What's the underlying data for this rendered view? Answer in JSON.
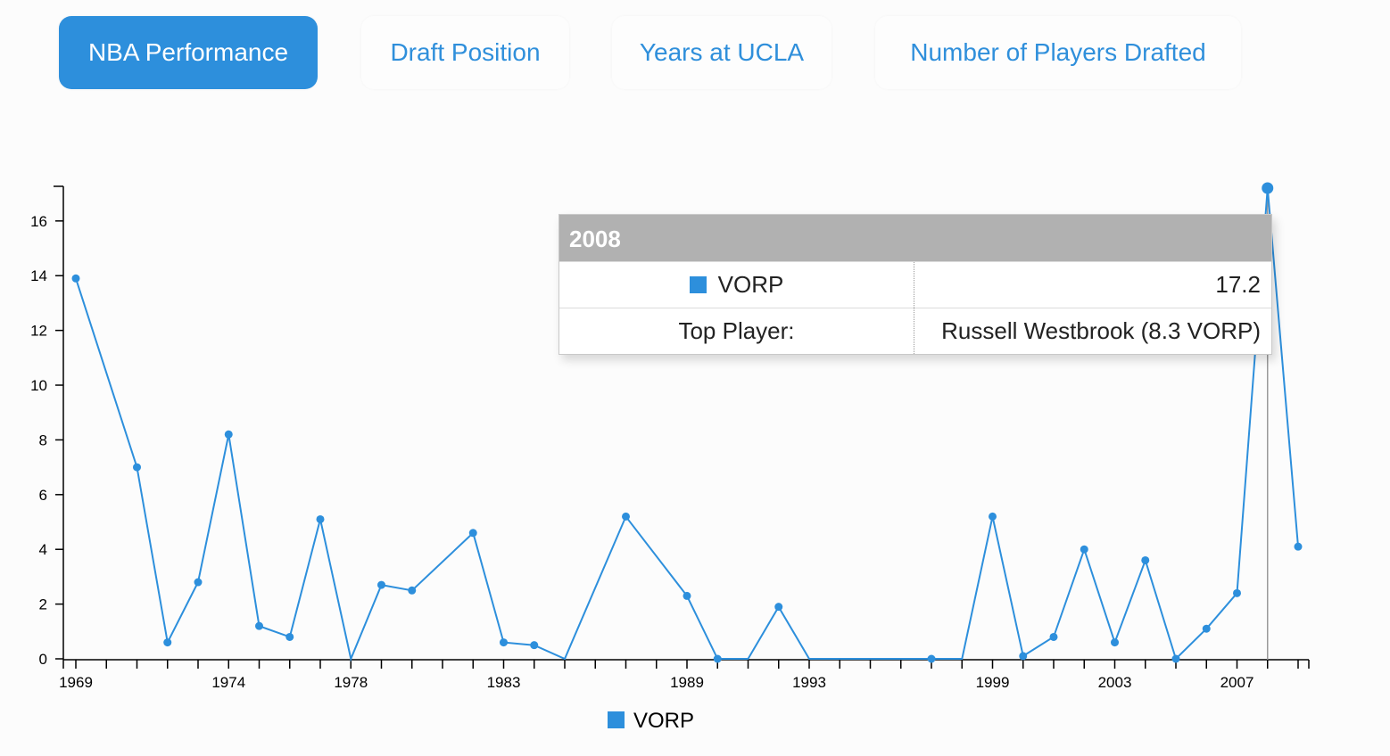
{
  "tabs": [
    {
      "label": "NBA Performance",
      "active": true
    },
    {
      "label": "Draft Position",
      "active": false
    },
    {
      "label": "Years at UCLA",
      "active": false
    },
    {
      "label": "Number of Players Drafted",
      "active": false
    }
  ],
  "colors": {
    "accent": "#2d8fdc",
    "tooltip_header": "#b1b1b1"
  },
  "chart_data": {
    "type": "line",
    "title": "",
    "xlabel": "",
    "ylabel": "",
    "xlim": [
      1969,
      2009
    ],
    "ylim": [
      0,
      17.2
    ],
    "y_ticks": [
      0,
      2,
      4,
      6,
      8,
      10,
      12,
      14,
      16
    ],
    "x_ticks": [
      1969,
      1970,
      1971,
      1972,
      1973,
      1974,
      1975,
      1976,
      1977,
      1978,
      1979,
      1980,
      1981,
      1982,
      1983,
      1984,
      1985,
      1986,
      1987,
      1988,
      1989,
      1990,
      1991,
      1992,
      1993,
      1994,
      1995,
      1996,
      1997,
      1998,
      1999,
      2000,
      2001,
      2002,
      2003,
      2004,
      2005,
      2006,
      2007,
      2008,
      2009
    ],
    "x_tick_labels": [
      {
        "year": 1969,
        "label": "1969"
      },
      {
        "year": 1974,
        "label": "1974"
      },
      {
        "year": 1978,
        "label": "1978"
      },
      {
        "year": 1983,
        "label": "1983"
      },
      {
        "year": 1989,
        "label": "1989"
      },
      {
        "year": 1993,
        "label": "1993"
      },
      {
        "year": 1999,
        "label": "1999"
      },
      {
        "year": 2003,
        "label": "2003"
      },
      {
        "year": 2007,
        "label": "2007"
      }
    ],
    "series": [
      {
        "name": "VORP",
        "color": "#2d8fdc",
        "points": [
          {
            "x": 1969,
            "y": 13.9
          },
          {
            "x": 1971,
            "y": 7.0
          },
          {
            "x": 1972,
            "y": 0.6
          },
          {
            "x": 1973,
            "y": 2.8
          },
          {
            "x": 1974,
            "y": 8.2
          },
          {
            "x": 1975,
            "y": 1.2
          },
          {
            "x": 1976,
            "y": 0.8
          },
          {
            "x": 1977,
            "y": 5.1
          },
          {
            "x": 1978,
            "y": 0
          },
          {
            "x": 1979,
            "y": 2.7
          },
          {
            "x": 1980,
            "y": 2.5
          },
          {
            "x": 1982,
            "y": 4.6
          },
          {
            "x": 1983,
            "y": 0.6
          },
          {
            "x": 1984,
            "y": 0.5
          },
          {
            "x": 1985,
            "y": 0
          },
          {
            "x": 1987,
            "y": 5.2
          },
          {
            "x": 1989,
            "y": 2.3
          },
          {
            "x": 1990,
            "y": 0
          },
          {
            "x": 1991,
            "y": 0
          },
          {
            "x": 1992,
            "y": 1.9
          },
          {
            "x": 1993,
            "y": 0
          },
          {
            "x": 1997,
            "y": 0
          },
          {
            "x": 1998,
            "y": 0
          },
          {
            "x": 1999,
            "y": 5.2
          },
          {
            "x": 2000,
            "y": 0.1
          },
          {
            "x": 2001,
            "y": 0.8
          },
          {
            "x": 2002,
            "y": 4.0
          },
          {
            "x": 2003,
            "y": 0.6
          },
          {
            "x": 2004,
            "y": 3.6
          },
          {
            "x": 2005,
            "y": 0
          },
          {
            "x": 2006,
            "y": 1.1
          },
          {
            "x": 2007,
            "y": 2.4
          },
          {
            "x": 2008,
            "y": 17.2
          },
          {
            "x": 2009,
            "y": 4.1
          }
        ],
        "dotted_years": [
          1969,
          1971,
          1972,
          1973,
          1974,
          1975,
          1976,
          1977,
          1979,
          1980,
          1982,
          1983,
          1984,
          1987,
          1989,
          1990,
          1992,
          1997,
          1999,
          2000,
          2001,
          2002,
          2003,
          2004,
          2005,
          2006,
          2007,
          2008,
          2009
        ]
      }
    ],
    "highlight_x": 2008,
    "legend": {
      "position": "bottom-center",
      "items": [
        "VORP"
      ]
    },
    "grid": false
  },
  "tooltip": {
    "title": "2008",
    "rows": [
      {
        "label": "VORP",
        "value": "17.2"
      },
      {
        "label": "Top Player:",
        "value": "Russell Westbrook (8.3 VORP)"
      }
    ]
  }
}
